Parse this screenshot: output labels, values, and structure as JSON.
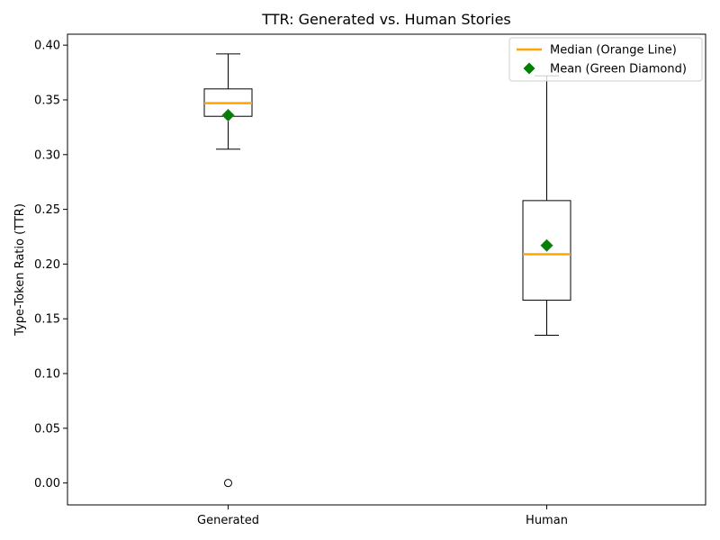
{
  "chart_data": {
    "type": "box",
    "title": "TTR: Generated vs. Human Stories",
    "xlabel": "",
    "ylabel": "Type-Token Ratio (TTR)",
    "ylim": [
      -0.02,
      0.41
    ],
    "yticks": [
      0.0,
      0.05,
      0.1,
      0.15,
      0.2,
      0.25,
      0.3,
      0.35,
      0.4
    ],
    "categories": [
      "Generated",
      "Human"
    ],
    "boxes": [
      {
        "category": "Generated",
        "whisker_low": 0.305,
        "q1": 0.335,
        "median": 0.347,
        "q3": 0.36,
        "whisker_high": 0.392,
        "mean": 0.336,
        "outliers": [
          0.0
        ]
      },
      {
        "category": "Human",
        "whisker_low": 0.135,
        "q1": 0.167,
        "median": 0.209,
        "q3": 0.258,
        "whisker_high": 0.372,
        "mean": 0.217,
        "outliers": []
      }
    ],
    "legend": {
      "position": "upper-right",
      "entries": [
        {
          "label": "Median (Orange Line)",
          "color": "#ffa500",
          "marker": "line"
        },
        {
          "label": "Mean (Green Diamond)",
          "color": "#008000",
          "marker": "diamond"
        }
      ]
    },
    "colors": {
      "median": "#ffa500",
      "mean": "#008000",
      "box": "#000000"
    },
    "grid": false
  }
}
